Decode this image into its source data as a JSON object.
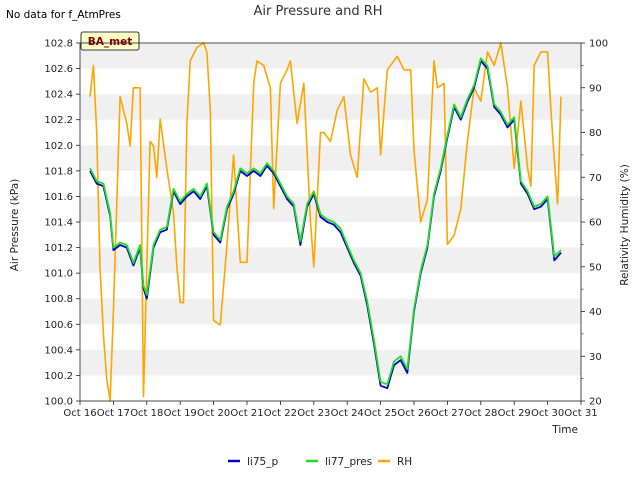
{
  "note": "No data for f_AtmPres",
  "badge": "BA_met",
  "chart_data": {
    "type": "line",
    "title": "Air Pressure and RH",
    "xlabel": "Time",
    "ylabel": "Air Pressure (kPa)",
    "y2label": "Relativity Humidity (%)",
    "xlim": [
      16,
      31
    ],
    "ylim": [
      100.0,
      102.8
    ],
    "y2lim": [
      20,
      100
    ],
    "x_ticks": [
      16,
      17,
      18,
      19,
      20,
      21,
      22,
      23,
      24,
      25,
      26,
      27,
      28,
      29,
      30,
      31
    ],
    "x_tick_labels": [
      "Oct 16",
      "Oct 17",
      "Oct 18",
      "Oct 19",
      "Oct 20",
      "Oct 21",
      "Oct 22",
      "Oct 23",
      "Oct 24",
      "Oct 25",
      "Oct 26",
      "Oct 27",
      "Oct 28",
      "Oct 29",
      "Oct 30",
      "Oct 31"
    ],
    "y_ticks": [
      100.0,
      100.2,
      100.4,
      100.6,
      100.8,
      101.0,
      101.2,
      101.4,
      101.6,
      101.8,
      102.0,
      102.2,
      102.4,
      102.6,
      102.8
    ],
    "y_tick_labels": [
      "100.0",
      "100.2",
      "100.4",
      "100.6",
      "100.8",
      "101.0",
      "101.2",
      "101.4",
      "101.6",
      "101.8",
      "102.0",
      "102.2",
      "102.4",
      "102.6",
      "102.8"
    ],
    "y2_ticks": [
      20,
      30,
      40,
      50,
      60,
      70,
      80,
      90,
      100
    ],
    "y2_tick_labels": [
      "20",
      "30",
      "40",
      "50",
      "60",
      "70",
      "80",
      "90",
      "100"
    ],
    "grid": "horizontal bands",
    "legend_position": "bottom-center",
    "colors": {
      "li75_p": "#0000cc",
      "li77_pres": "#22dd22",
      "RH": "#ffa500",
      "band": "#f0f0f0"
    },
    "series": [
      {
        "name": "li75_p",
        "axis": "left",
        "x": [
          16.3,
          16.5,
          16.7,
          16.9,
          17.0,
          17.2,
          17.4,
          17.6,
          17.8,
          17.9,
          18.0,
          18.2,
          18.4,
          18.6,
          18.8,
          19.0,
          19.2,
          19.4,
          19.6,
          19.8,
          20.0,
          20.2,
          20.4,
          20.6,
          20.8,
          21.0,
          21.2,
          21.4,
          21.6,
          21.8,
          22.0,
          22.2,
          22.4,
          22.6,
          22.8,
          23.0,
          23.2,
          23.4,
          23.6,
          23.8,
          24.0,
          24.2,
          24.4,
          24.6,
          24.8,
          25.0,
          25.2,
          25.4,
          25.6,
          25.8,
          26.0,
          26.2,
          26.4,
          26.6,
          26.8,
          27.0,
          27.2,
          27.4,
          27.6,
          27.8,
          28.0,
          28.2,
          28.4,
          28.6,
          28.8,
          29.0,
          29.2,
          29.4,
          29.6,
          29.8,
          30.0,
          30.2,
          30.4
        ],
        "values": [
          101.8,
          101.7,
          101.68,
          101.45,
          101.18,
          101.22,
          101.2,
          101.06,
          101.2,
          100.88,
          100.8,
          101.2,
          101.32,
          101.34,
          101.64,
          101.54,
          101.6,
          101.64,
          101.58,
          101.68,
          101.3,
          101.24,
          101.5,
          101.62,
          101.8,
          101.76,
          101.8,
          101.76,
          101.84,
          101.78,
          101.68,
          101.58,
          101.52,
          101.22,
          101.52,
          101.62,
          101.44,
          101.4,
          101.38,
          101.32,
          101.2,
          101.08,
          100.98,
          100.75,
          100.45,
          100.12,
          100.1,
          100.28,
          100.32,
          100.22,
          100.7,
          101.0,
          101.2,
          101.6,
          101.8,
          102.06,
          102.3,
          102.2,
          102.34,
          102.45,
          102.66,
          102.6,
          102.3,
          102.24,
          102.14,
          102.2,
          101.7,
          101.62,
          101.5,
          101.52,
          101.58,
          101.1,
          101.16
        ]
      },
      {
        "name": "li77_pres",
        "axis": "left",
        "x": [
          16.3,
          16.5,
          16.7,
          16.9,
          17.0,
          17.2,
          17.4,
          17.6,
          17.8,
          17.9,
          18.0,
          18.2,
          18.4,
          18.6,
          18.8,
          19.0,
          19.2,
          19.4,
          19.6,
          19.8,
          20.0,
          20.2,
          20.4,
          20.6,
          20.8,
          21.0,
          21.2,
          21.4,
          21.6,
          21.8,
          22.0,
          22.2,
          22.4,
          22.6,
          22.8,
          23.0,
          23.2,
          23.4,
          23.6,
          23.8,
          24.0,
          24.2,
          24.4,
          24.6,
          24.8,
          25.0,
          25.2,
          25.4,
          25.6,
          25.8,
          26.0,
          26.2,
          26.4,
          26.6,
          26.8,
          27.0,
          27.2,
          27.4,
          27.6,
          27.8,
          28.0,
          28.2,
          28.4,
          28.6,
          28.8,
          29.0,
          29.2,
          29.4,
          29.6,
          29.8,
          30.0,
          30.2,
          30.4
        ],
        "values": [
          101.82,
          101.72,
          101.7,
          101.47,
          101.2,
          101.24,
          101.22,
          101.08,
          101.22,
          100.9,
          100.83,
          101.22,
          101.34,
          101.36,
          101.66,
          101.56,
          101.62,
          101.66,
          101.6,
          101.7,
          101.32,
          101.26,
          101.52,
          101.64,
          101.82,
          101.78,
          101.82,
          101.78,
          101.86,
          101.8,
          101.7,
          101.6,
          101.54,
          101.25,
          101.54,
          101.64,
          101.46,
          101.42,
          101.4,
          101.35,
          101.22,
          101.1,
          101.0,
          100.78,
          100.48,
          100.15,
          100.13,
          100.31,
          100.35,
          100.25,
          100.72,
          101.02,
          101.22,
          101.62,
          101.82,
          102.08,
          102.32,
          102.22,
          102.36,
          102.47,
          102.68,
          102.62,
          102.32,
          102.26,
          102.16,
          102.22,
          101.72,
          101.64,
          101.52,
          101.54,
          101.6,
          101.13,
          101.18
        ]
      },
      {
        "name": "RH",
        "axis": "right",
        "x": [
          16.3,
          16.4,
          16.5,
          16.6,
          16.7,
          16.8,
          16.9,
          17.0,
          17.2,
          17.4,
          17.5,
          17.6,
          17.8,
          17.9,
          18.0,
          18.1,
          18.2,
          18.3,
          18.4,
          18.6,
          18.8,
          18.9,
          19.0,
          19.1,
          19.2,
          19.3,
          19.5,
          19.7,
          19.8,
          19.9,
          20.0,
          20.2,
          20.4,
          20.6,
          20.8,
          21.0,
          21.2,
          21.3,
          21.5,
          21.7,
          21.8,
          22.0,
          22.2,
          22.3,
          22.5,
          22.7,
          22.9,
          23.0,
          23.2,
          23.3,
          23.5,
          23.7,
          23.9,
          24.1,
          24.3,
          24.5,
          24.7,
          24.9,
          25.0,
          25.2,
          25.5,
          25.7,
          25.9,
          26.0,
          26.2,
          26.4,
          26.6,
          26.7,
          26.9,
          27.0,
          27.2,
          27.4,
          27.6,
          27.8,
          28.0,
          28.2,
          28.4,
          28.6,
          28.8,
          29.0,
          29.2,
          29.4,
          29.5,
          29.6,
          29.8,
          30.0,
          30.1,
          30.2,
          30.3,
          30.4
        ],
        "values": [
          88,
          95,
          80,
          50,
          35,
          25,
          20,
          40,
          88,
          82,
          77,
          90,
          90,
          21,
          50,
          78,
          77,
          70,
          83,
          72,
          62,
          50,
          42,
          42,
          82,
          96,
          99,
          100,
          98,
          85,
          38,
          37,
          55,
          75,
          51,
          51,
          91,
          96,
          95,
          90,
          63,
          91,
          94,
          96,
          82,
          91,
          60,
          50,
          80,
          80,
          78,
          85,
          88,
          75,
          70,
          92,
          89,
          90,
          75,
          94,
          97,
          94,
          94,
          76,
          60,
          65,
          96,
          90,
          91,
          55,
          57,
          63,
          78,
          90,
          87,
          98,
          95,
          100,
          90,
          72,
          87,
          72,
          68,
          95,
          98,
          98,
          85,
          74,
          64,
          88
        ]
      }
    ]
  }
}
